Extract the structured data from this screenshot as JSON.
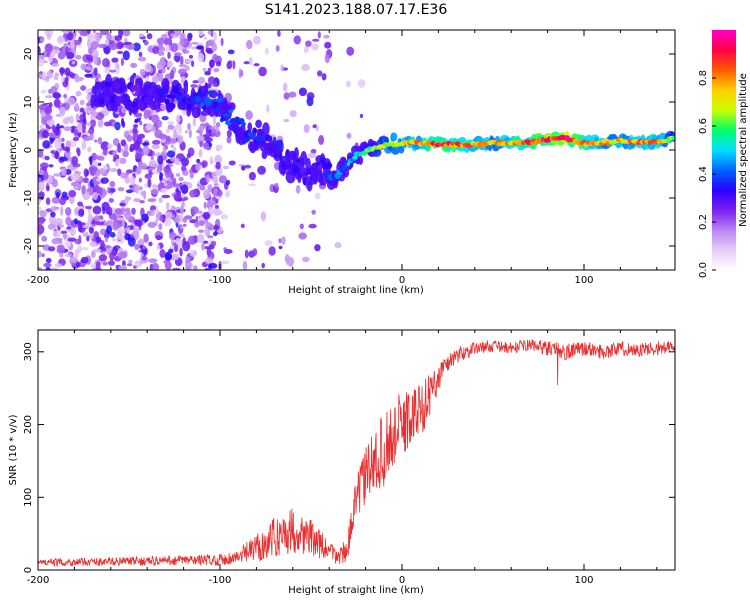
{
  "title": "S141.2023.188.07.17.E36",
  "chart_data": [
    {
      "type": "heatmap",
      "panel": "spectrogram",
      "title": "S141.2023.188.07.17.E36",
      "xlabel": "Height of straight line (km)",
      "ylabel": "Frequency (Hz)",
      "xlim": [
        -200,
        150
      ],
      "ylim": [
        -25,
        25
      ],
      "xticks": [
        -200,
        -100,
        0,
        100
      ],
      "yticks": [
        -20,
        -10,
        0,
        10,
        20
      ],
      "colorbar": {
        "label": "Normalized spectral amplitude",
        "range": [
          0,
          1
        ],
        "ticks": [
          0.0,
          0.2,
          0.4,
          0.6,
          0.8
        ],
        "colors": [
          "#ffffff",
          "#e7cdf8",
          "#b982f2",
          "#7a1ff0",
          "#2a00ff",
          "#0066ff",
          "#00e0ff",
          "#00ff66",
          "#ccff00",
          "#ffd000",
          "#ff5a00",
          "#ff0044",
          "#ff00cc"
        ]
      },
      "ridge": {
        "x": [
          -160,
          -140,
          -120,
          -105,
          -90,
          -80,
          -70,
          -60,
          -52,
          -45,
          -38,
          -32,
          -25,
          -18,
          -10,
          0,
          10,
          20,
          30,
          40,
          50,
          60,
          70,
          80,
          90,
          100,
          110,
          120,
          130,
          140,
          150
        ],
        "y": [
          12,
          11,
          11,
          10,
          5,
          3,
          0,
          -3,
          -5,
          -3,
          -6,
          -4,
          -1,
          0,
          1,
          1.5,
          1.3,
          1.2,
          1,
          1.2,
          1.4,
          1.6,
          1.6,
          2.2,
          2.5,
          1.4,
          1.6,
          1.8,
          1.6,
          1.8,
          2.5
        ],
        "amplitude": [
          0.3,
          0.3,
          0.35,
          0.4,
          0.4,
          0.35,
          0.35,
          0.35,
          0.3,
          0.3,
          0.4,
          0.45,
          0.5,
          0.6,
          0.7,
          0.75,
          0.8,
          0.85,
          0.85,
          0.8,
          0.75,
          0.8,
          0.85,
          0.9,
          0.95,
          0.85,
          0.75,
          0.75,
          0.8,
          0.8,
          0.65
        ]
      }
    },
    {
      "type": "line",
      "panel": "snr",
      "xlabel": "Height of straight line (km)",
      "ylabel": "SNR (10 * v/v)",
      "xlim": [
        -200,
        150
      ],
      "ylim": [
        0,
        330
      ],
      "xticks": [
        -200,
        -100,
        0,
        100
      ],
      "yticks": [
        0,
        100,
        200,
        300
      ],
      "color": "#e83030",
      "series": [
        {
          "name": "SNR",
          "x": [
            -200,
            -150,
            -100,
            -90,
            -80,
            -70,
            -60,
            -50,
            -40,
            -35,
            -30,
            -25,
            -20,
            -15,
            -10,
            -5,
            0,
            5,
            10,
            15,
            20,
            25,
            30,
            35,
            40,
            50,
            60,
            70,
            80,
            90,
            100,
            110,
            120,
            130,
            140,
            150
          ],
          "y": [
            10,
            12,
            14,
            18,
            30,
            45,
            55,
            45,
            25,
            18,
            30,
            100,
            130,
            150,
            165,
            185,
            200,
            210,
            220,
            240,
            265,
            285,
            295,
            300,
            305,
            308,
            305,
            310,
            305,
            300,
            305,
            300,
            305,
            302,
            305,
            305
          ],
          "noise": [
            5,
            6,
            8,
            10,
            20,
            28,
            32,
            25,
            15,
            12,
            18,
            30,
            40,
            45,
            50,
            50,
            45,
            45,
            40,
            30,
            20,
            14,
            12,
            10,
            8,
            8,
            8,
            8,
            10,
            12,
            10,
            10,
            10,
            10,
            10,
            12
          ]
        }
      ]
    }
  ]
}
